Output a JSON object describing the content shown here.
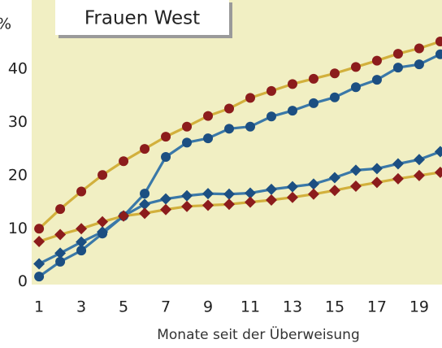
{
  "chart_data": {
    "type": "line",
    "title": "Frauen West",
    "xlabel": "Monate seit der Überweisung",
    "ylabel": "%",
    "x": [
      1,
      2,
      3,
      4,
      5,
      6,
      7,
      8,
      9,
      10,
      11,
      12,
      13,
      14,
      15,
      16,
      17,
      18,
      19,
      20
    ],
    "xlim": [
      0.65,
      20.08
    ],
    "xticks": [
      1,
      3,
      5,
      7,
      9,
      11,
      13,
      15,
      17,
      19
    ],
    "ylim": [
      -0.5,
      53
    ],
    "yticks": [
      0,
      10,
      20,
      30,
      40
    ],
    "background": "#f1efc3",
    "grid": false,
    "series": [
      {
        "color": "#d2b03c",
        "marker": "circle",
        "marker_color": "#8c1c1c",
        "values": [
          10,
          13.7,
          17,
          20.1,
          22.7,
          25,
          27.3,
          29.2,
          31.2,
          32.6,
          34.6,
          35.9,
          37.2,
          38.2,
          39.2,
          40.4,
          41.6,
          42.9,
          43.9,
          45.2
        ]
      },
      {
        "color": "#3a78a8",
        "marker": "circle",
        "marker_color": "#1c4f82",
        "values": [
          1,
          3.8,
          5.9,
          9.1,
          12.4,
          16.6,
          23.5,
          26.2,
          27,
          28.8,
          29.2,
          31.1,
          32.2,
          33.6,
          34.7,
          36.6,
          38,
          40.3,
          40.9,
          42.8
        ]
      },
      {
        "color": "#3a78a8",
        "marker": "diamond",
        "marker_color": "#1c4f82",
        "values": [
          3.4,
          5.4,
          7.5,
          9.4,
          12.4,
          14.6,
          15.6,
          16.2,
          16.6,
          16.5,
          16.7,
          17.4,
          17.9,
          18.4,
          19.6,
          21,
          21.3,
          22.2,
          23,
          24.5
        ]
      },
      {
        "color": "#d2b03c",
        "marker": "diamond",
        "marker_color": "#8c1c1c",
        "values": [
          7.6,
          8.9,
          10,
          11.3,
          12.4,
          12.9,
          13.6,
          14.2,
          14.4,
          14.6,
          15,
          15.4,
          15.9,
          16.5,
          17.2,
          18,
          18.7,
          19.4,
          20,
          20.6
        ]
      }
    ]
  }
}
